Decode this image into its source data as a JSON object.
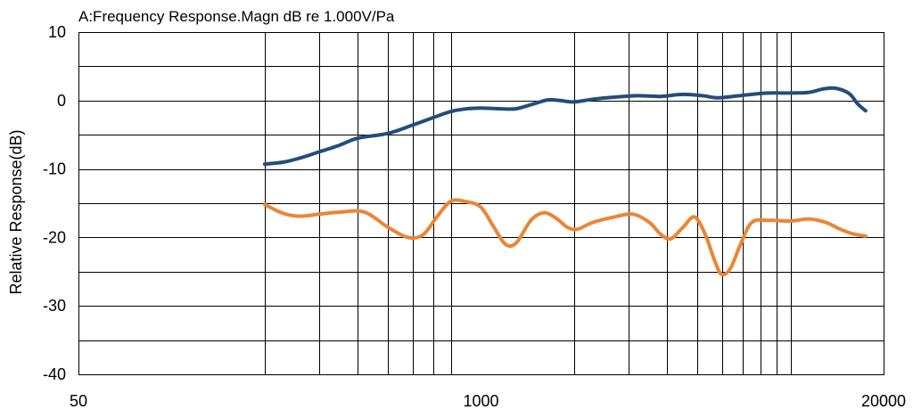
{
  "chart_data": {
    "type": "line",
    "title": "A:Frequency Response.Magn dB re 1.000V/Pa",
    "xlabel": "",
    "ylabel": "Relative Response(dB)",
    "x_scale": "log",
    "xlim": [
      50,
      20000
    ],
    "ylim": [
      -40,
      10
    ],
    "x_ticks": [
      {
        "value": 50,
        "label": "50"
      },
      {
        "value": 1000,
        "label": "1000"
      },
      {
        "value": 20000,
        "label": "20000"
      }
    ],
    "y_ticks": [
      {
        "value": 10,
        "label": "10"
      },
      {
        "value": 0,
        "label": "0"
      },
      {
        "value": -10,
        "label": "-10"
      },
      {
        "value": -20,
        "label": "-20"
      },
      {
        "value": -30,
        "label": "-30"
      },
      {
        "value": -40,
        "label": "-40"
      }
    ],
    "y_minor": [
      5,
      -5,
      -15,
      -25,
      -35
    ],
    "x_grid": [
      200,
      300,
      400,
      500,
      600,
      700,
      800,
      2000,
      3000,
      4000,
      5000,
      6000,
      7000,
      8000,
      9000,
      10000
    ],
    "grid": true,
    "legend": "none",
    "series": [
      {
        "color": "#234d7c",
        "points": [
          [
            200,
            -9.3
          ],
          [
            230,
            -9.0
          ],
          [
            260,
            -8.4
          ],
          [
            300,
            -7.5
          ],
          [
            350,
            -6.5
          ],
          [
            400,
            -5.5
          ],
          [
            500,
            -4.8
          ],
          [
            600,
            -3.6
          ],
          [
            700,
            -2.5
          ],
          [
            800,
            -1.6
          ],
          [
            900,
            -1.2
          ],
          [
            1000,
            -1.1
          ],
          [
            1150,
            -1.2
          ],
          [
            1300,
            -1.2
          ],
          [
            1500,
            -0.4
          ],
          [
            1650,
            0.1
          ],
          [
            1800,
            0.0
          ],
          [
            2000,
            -0.2
          ],
          [
            2300,
            0.2
          ],
          [
            2700,
            0.5
          ],
          [
            3200,
            0.7
          ],
          [
            3800,
            0.6
          ],
          [
            4500,
            0.9
          ],
          [
            5200,
            0.7
          ],
          [
            5800,
            0.4
          ],
          [
            6500,
            0.6
          ],
          [
            7500,
            0.9
          ],
          [
            8500,
            1.1
          ],
          [
            10000,
            1.1
          ],
          [
            11500,
            1.2
          ],
          [
            12800,
            1.7
          ],
          [
            14000,
            1.8
          ],
          [
            15500,
            1.0
          ],
          [
            16500,
            -0.5
          ],
          [
            17500,
            -1.5
          ]
        ]
      },
      {
        "color": "#ec8535",
        "points": [
          [
            200,
            -15.2
          ],
          [
            230,
            -16.5
          ],
          [
            260,
            -16.9
          ],
          [
            300,
            -16.6
          ],
          [
            350,
            -16.3
          ],
          [
            420,
            -16.3
          ],
          [
            500,
            -18.5
          ],
          [
            580,
            -20.0
          ],
          [
            650,
            -19.6
          ],
          [
            720,
            -17.0
          ],
          [
            800,
            -14.7
          ],
          [
            900,
            -14.8
          ],
          [
            1000,
            -15.6
          ],
          [
            1100,
            -18.5
          ],
          [
            1200,
            -21.0
          ],
          [
            1300,
            -20.8
          ],
          [
            1450,
            -17.5
          ],
          [
            1600,
            -16.4
          ],
          [
            1750,
            -17.2
          ],
          [
            1900,
            -18.5
          ],
          [
            2050,
            -18.8
          ],
          [
            2300,
            -17.8
          ],
          [
            2700,
            -17.0
          ],
          [
            3100,
            -16.6
          ],
          [
            3500,
            -17.8
          ],
          [
            3800,
            -19.5
          ],
          [
            4100,
            -20.2
          ],
          [
            4500,
            -18.5
          ],
          [
            4900,
            -17.0
          ],
          [
            5300,
            -19.5
          ],
          [
            5700,
            -23.5
          ],
          [
            6000,
            -25.4
          ],
          [
            6400,
            -24.5
          ],
          [
            6900,
            -21.0
          ],
          [
            7500,
            -17.8
          ],
          [
            8500,
            -17.5
          ],
          [
            10000,
            -17.6
          ],
          [
            11500,
            -17.3
          ],
          [
            13000,
            -17.8
          ],
          [
            14500,
            -18.8
          ],
          [
            16000,
            -19.5
          ],
          [
            17500,
            -19.8
          ]
        ]
      }
    ]
  }
}
